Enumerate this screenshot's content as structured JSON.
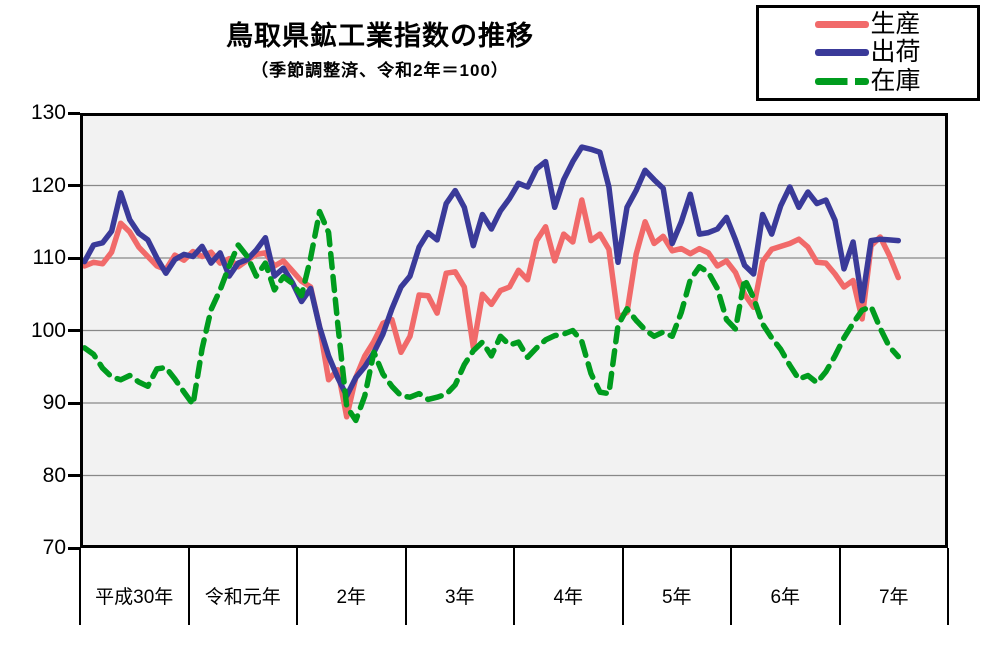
{
  "chart": {
    "title": "鳥取県鉱工業指数の推移",
    "subtitle": "（季節調整済、令和2年＝100）"
  },
  "colors": {
    "production": "#F16A6A",
    "shipment": "#3A3A99",
    "inventory": "#009C1E",
    "gridline": "#888888",
    "plot_background": "#F2F2F2",
    "frame": "#000000"
  },
  "chart_data": {
    "type": "line",
    "title": "鳥取県鉱工業指数の推移",
    "subtitle": "（季節調整済、令和2年＝100）",
    "grid": "horizontal",
    "legend_position": "top-right",
    "x_axis": {
      "year_labels": [
        "平成30年",
        "令和元年",
        "2年",
        "3年",
        "4年",
        "5年",
        "6年",
        "7年"
      ],
      "months_per_year": 12,
      "final_year_months": 7
    },
    "y_axis": {
      "min": 70,
      "max": 130,
      "step": 10,
      "tick_labels": [
        "130",
        "120",
        "110",
        "100",
        "90",
        "80",
        "70"
      ]
    },
    "series": [
      {
        "key": "production",
        "label": "生産",
        "color": "#F16A6A",
        "style": "solid",
        "values": [
          108.9,
          109.4,
          109.2,
          110.8,
          114.8,
          113.6,
          111.5,
          110.2,
          108.9,
          108.4,
          110.4,
          109.7,
          110.9,
          110.2,
          110.8,
          109.3,
          109.9,
          108.8,
          109.7,
          110.5,
          110.7,
          108.9,
          109.6,
          108.2,
          106.8,
          106.0,
          100.5,
          93.2,
          94.6,
          88.1,
          93.5,
          96.5,
          98.5,
          101.0,
          101.5,
          97.0,
          99.2,
          104.9,
          104.8,
          102.4,
          107.9,
          108.1,
          106.0,
          97.7,
          105.0,
          103.6,
          105.5,
          106.0,
          108.3,
          107.0,
          112.4,
          114.3,
          109.6,
          113.3,
          112.2,
          118.0,
          112.4,
          113.3,
          111.2,
          101.8,
          102.5,
          110.5,
          115.0,
          112.0,
          113.0,
          111.0,
          111.3,
          110.6,
          111.3,
          110.7,
          108.9,
          109.6,
          108.0,
          105.0,
          103.2,
          109.5,
          111.2,
          111.6,
          112.0,
          112.6,
          111.5,
          109.4,
          109.3,
          107.8,
          106.0,
          106.9,
          101.6,
          111.7,
          112.9,
          110.4,
          107.3
        ]
      },
      {
        "key": "shipment",
        "label": "出荷",
        "color": "#3A3A99",
        "style": "solid",
        "values": [
          109.5,
          111.8,
          112.1,
          113.7,
          119.0,
          115.3,
          113.4,
          112.5,
          110.0,
          107.9,
          109.8,
          110.5,
          110.2,
          111.6,
          109.3,
          110.7,
          107.5,
          109.3,
          109.8,
          111.1,
          112.8,
          107.5,
          108.6,
          106.6,
          104.0,
          105.8,
          100.5,
          96.5,
          93.5,
          91.0,
          93.5,
          95.0,
          97.0,
          99.5,
          103.0,
          106.0,
          107.5,
          111.5,
          113.5,
          112.5,
          117.5,
          119.3,
          117.0,
          111.7,
          116.0,
          114.0,
          116.5,
          118.2,
          120.3,
          119.8,
          122.3,
          123.3,
          117.0,
          120.8,
          123.3,
          125.3,
          125.0,
          124.6,
          119.8,
          109.4,
          117.0,
          119.3,
          122.1,
          120.8,
          119.6,
          112.0,
          115.0,
          118.8,
          113.3,
          113.5,
          114.0,
          115.6,
          112.5,
          109.0,
          107.8,
          116.0,
          113.3,
          117.2,
          119.8,
          117.0,
          119.1,
          117.5,
          118.0,
          115.2,
          108.5,
          112.2,
          104.1,
          112.4,
          112.6,
          112.5,
          112.4
        ]
      },
      {
        "key": "inventory",
        "label": "在庫",
        "color": "#009C1E",
        "style": "dashed",
        "values": [
          97.6,
          96.7,
          94.8,
          93.6,
          93.2,
          93.8,
          92.9,
          92.3,
          94.7,
          94.9,
          93.3,
          91.5,
          89.8,
          97.5,
          102.9,
          105.6,
          108.9,
          111.8,
          110.2,
          107.5,
          109.3,
          105.6,
          107.4,
          106.5,
          104.8,
          110.0,
          116.4,
          113.5,
          101.0,
          89.5,
          87.6,
          91.0,
          97.0,
          94.0,
          92.3,
          91.0,
          90.8,
          91.3,
          90.5,
          90.8,
          91.2,
          92.5,
          95.3,
          97.2,
          98.4,
          96.5,
          99.2,
          98.0,
          98.4,
          96.3,
          97.6,
          98.7,
          99.3,
          99.5,
          100.0,
          98.5,
          94.1,
          91.5,
          91.3,
          100.7,
          103.0,
          101.4,
          100.1,
          99.2,
          99.8,
          99.2,
          102.5,
          107.0,
          108.8,
          108.0,
          105.8,
          101.5,
          100.2,
          107.1,
          104.5,
          100.9,
          99.0,
          97.4,
          95.2,
          93.3,
          93.8,
          92.8,
          94.3,
          96.5,
          99.0,
          101.0,
          102.8,
          103.3,
          100.3,
          97.8,
          96.4
        ]
      }
    ]
  }
}
